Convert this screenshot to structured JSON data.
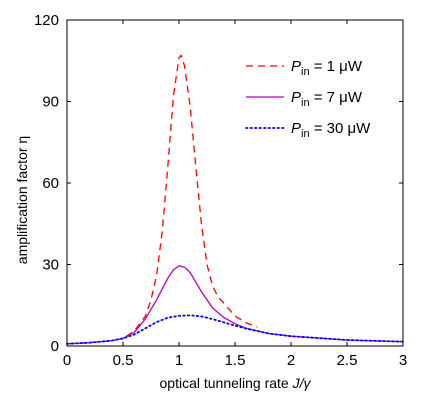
{
  "chart_data": {
    "type": "line",
    "xlabel": {
      "text": "optical tunneling rate ",
      "var": "J/γ"
    },
    "ylabel": "amplification factor η",
    "xlim": [
      0,
      3
    ],
    "ylim": [
      0,
      120
    ],
    "xticks": [
      0,
      0.5,
      1,
      1.5,
      2,
      2.5,
      3
    ],
    "xtick_labels": [
      "0",
      "0.5",
      "1",
      "1.5",
      "2",
      "2.5",
      "3"
    ],
    "yticks": [
      0,
      30,
      60,
      90,
      120
    ],
    "ytick_labels": [
      "0",
      "30",
      "60",
      "90",
      "120"
    ],
    "grid": false,
    "legend_position": "top-right",
    "series": [
      {
        "name": "P_in = 1 μW",
        "legend": {
          "var": "P",
          "sub": "in",
          "rest": " = 1 μW"
        },
        "color": "#ff0000",
        "style": "dashed",
        "x": [
          0,
          0.2,
          0.4,
          0.5,
          0.6,
          0.7,
          0.75,
          0.8,
          0.85,
          0.9,
          0.95,
          1.0,
          1.02,
          1.05,
          1.1,
          1.15,
          1.2,
          1.25,
          1.3,
          1.35,
          1.4,
          1.5,
          1.6,
          1.7
        ],
        "y": [
          0.8,
          1.2,
          2.0,
          2.8,
          5.5,
          11,
          17,
          26,
          42,
          66,
          92,
          106,
          107,
          103,
          88,
          66,
          45,
          30,
          22,
          18,
          15.8,
          11,
          8.5,
          7
        ]
      },
      {
        "name": "P_in = 7 μW",
        "legend": {
          "var": "P",
          "sub": "in",
          "rest": " = 7 μW"
        },
        "color": "#c000c0",
        "style": "solid",
        "x": [
          0,
          0.2,
          0.4,
          0.5,
          0.6,
          0.7,
          0.8,
          0.9,
          0.95,
          1.0,
          1.05,
          1.1,
          1.2,
          1.3,
          1.4,
          1.5,
          1.6,
          1.8,
          2.0,
          2.5,
          3.0
        ],
        "y": [
          0.8,
          1.2,
          2.0,
          2.8,
          5.0,
          10,
          17,
          25,
          28,
          29.5,
          29,
          27,
          20,
          14,
          10.5,
          8.2,
          6.5,
          4.6,
          3.6,
          2.2,
          1.6
        ]
      },
      {
        "name": "P_in = 30 μW",
        "legend": {
          "var": "P",
          "sub": "in",
          "rest": " = 30 μW"
        },
        "color": "#0000ff",
        "style": "dotted",
        "x": [
          0,
          0.2,
          0.4,
          0.5,
          0.6,
          0.7,
          0.8,
          0.9,
          1.0,
          1.1,
          1.2,
          1.3,
          1.4,
          1.5,
          1.6,
          1.8,
          2.0,
          2.5,
          3.0
        ],
        "y": [
          0.8,
          1.2,
          2.0,
          2.8,
          4.2,
          6.5,
          8.8,
          10.4,
          11.1,
          11.3,
          10.9,
          9.9,
          8.7,
          7.5,
          6.4,
          4.6,
          3.6,
          2.2,
          1.6
        ]
      }
    ]
  }
}
